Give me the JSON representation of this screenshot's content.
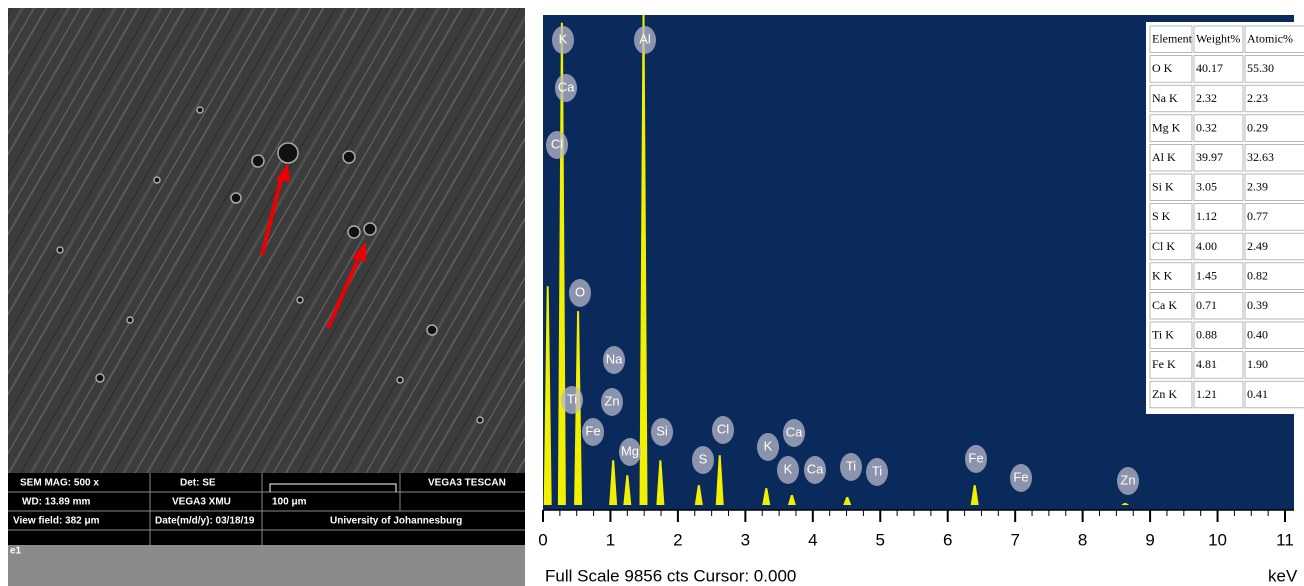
{
  "sem_info": {
    "mag": "SEM MAG: 500 x",
    "det": "Det: SE",
    "brand": "VEGA3 TESCAN",
    "wd": "WD: 13.89 mm",
    "model": "VEGA3 XMU",
    "scale_bar": "100 μm",
    "view_field": "View field: 382 μm",
    "date": "Date(m/d/y): 03/18/19",
    "institution": "University of Johannesburg",
    "label": "e1"
  },
  "spectrum": {
    "ylim": [
      0,
      9856
    ],
    "xlim": [
      0,
      11
    ],
    "xticks": [
      0,
      1,
      2,
      3,
      4,
      5,
      6,
      7,
      8,
      9,
      10,
      11
    ],
    "x_unit": "keV",
    "footer": "Full Scale 9856 cts Cursor: 0.000",
    "peaks": [
      {
        "energy": 0.07,
        "counts": 4400
      },
      {
        "energy": 0.28,
        "counts": 9700
      },
      {
        "energy": 0.52,
        "counts": 3900
      },
      {
        "energy": 1.04,
        "counts": 900
      },
      {
        "energy": 1.25,
        "counts": 600
      },
      {
        "energy": 1.49,
        "counts": 9856
      },
      {
        "energy": 1.74,
        "counts": 900
      },
      {
        "energy": 2.31,
        "counts": 400
      },
      {
        "energy": 2.62,
        "counts": 1000
      },
      {
        "energy": 3.31,
        "counts": 340
      },
      {
        "energy": 3.69,
        "counts": 200
      },
      {
        "energy": 4.51,
        "counts": 160
      },
      {
        "energy": 6.4,
        "counts": 400
      },
      {
        "energy": 8.63,
        "counts": 40
      }
    ],
    "peak_labels": [
      "K",
      "Ca",
      "Cl",
      "Al",
      "O",
      "Na",
      "Ti",
      "Zn",
      "Fe",
      "Mg",
      "Si",
      "S",
      "Cl",
      "K",
      "Ca",
      "K",
      "Ca",
      "Ti",
      "Ti",
      "Fe",
      "Fe",
      "Zn"
    ]
  },
  "table": {
    "header": [
      "Element",
      "Weight%",
      "Atomic%"
    ],
    "rows": [
      [
        "O K",
        "40.17",
        "55.30"
      ],
      [
        "Na K",
        "2.32",
        "2.23"
      ],
      [
        "Mg K",
        "0.32",
        "0.29"
      ],
      [
        "Al K",
        "39.97",
        "32.63"
      ],
      [
        "Si K",
        "3.05",
        "2.39"
      ],
      [
        "S K",
        "1.12",
        "0.77"
      ],
      [
        "Cl K",
        "4.00",
        "2.49"
      ],
      [
        "K K",
        "1.45",
        "0.82"
      ],
      [
        "Ca K",
        "0.71",
        "0.39"
      ],
      [
        "Ti K",
        "0.88",
        "0.40"
      ],
      [
        "Fe K",
        "4.81",
        "1.90"
      ],
      [
        "Zn K",
        "1.21",
        "0.41"
      ]
    ]
  }
}
